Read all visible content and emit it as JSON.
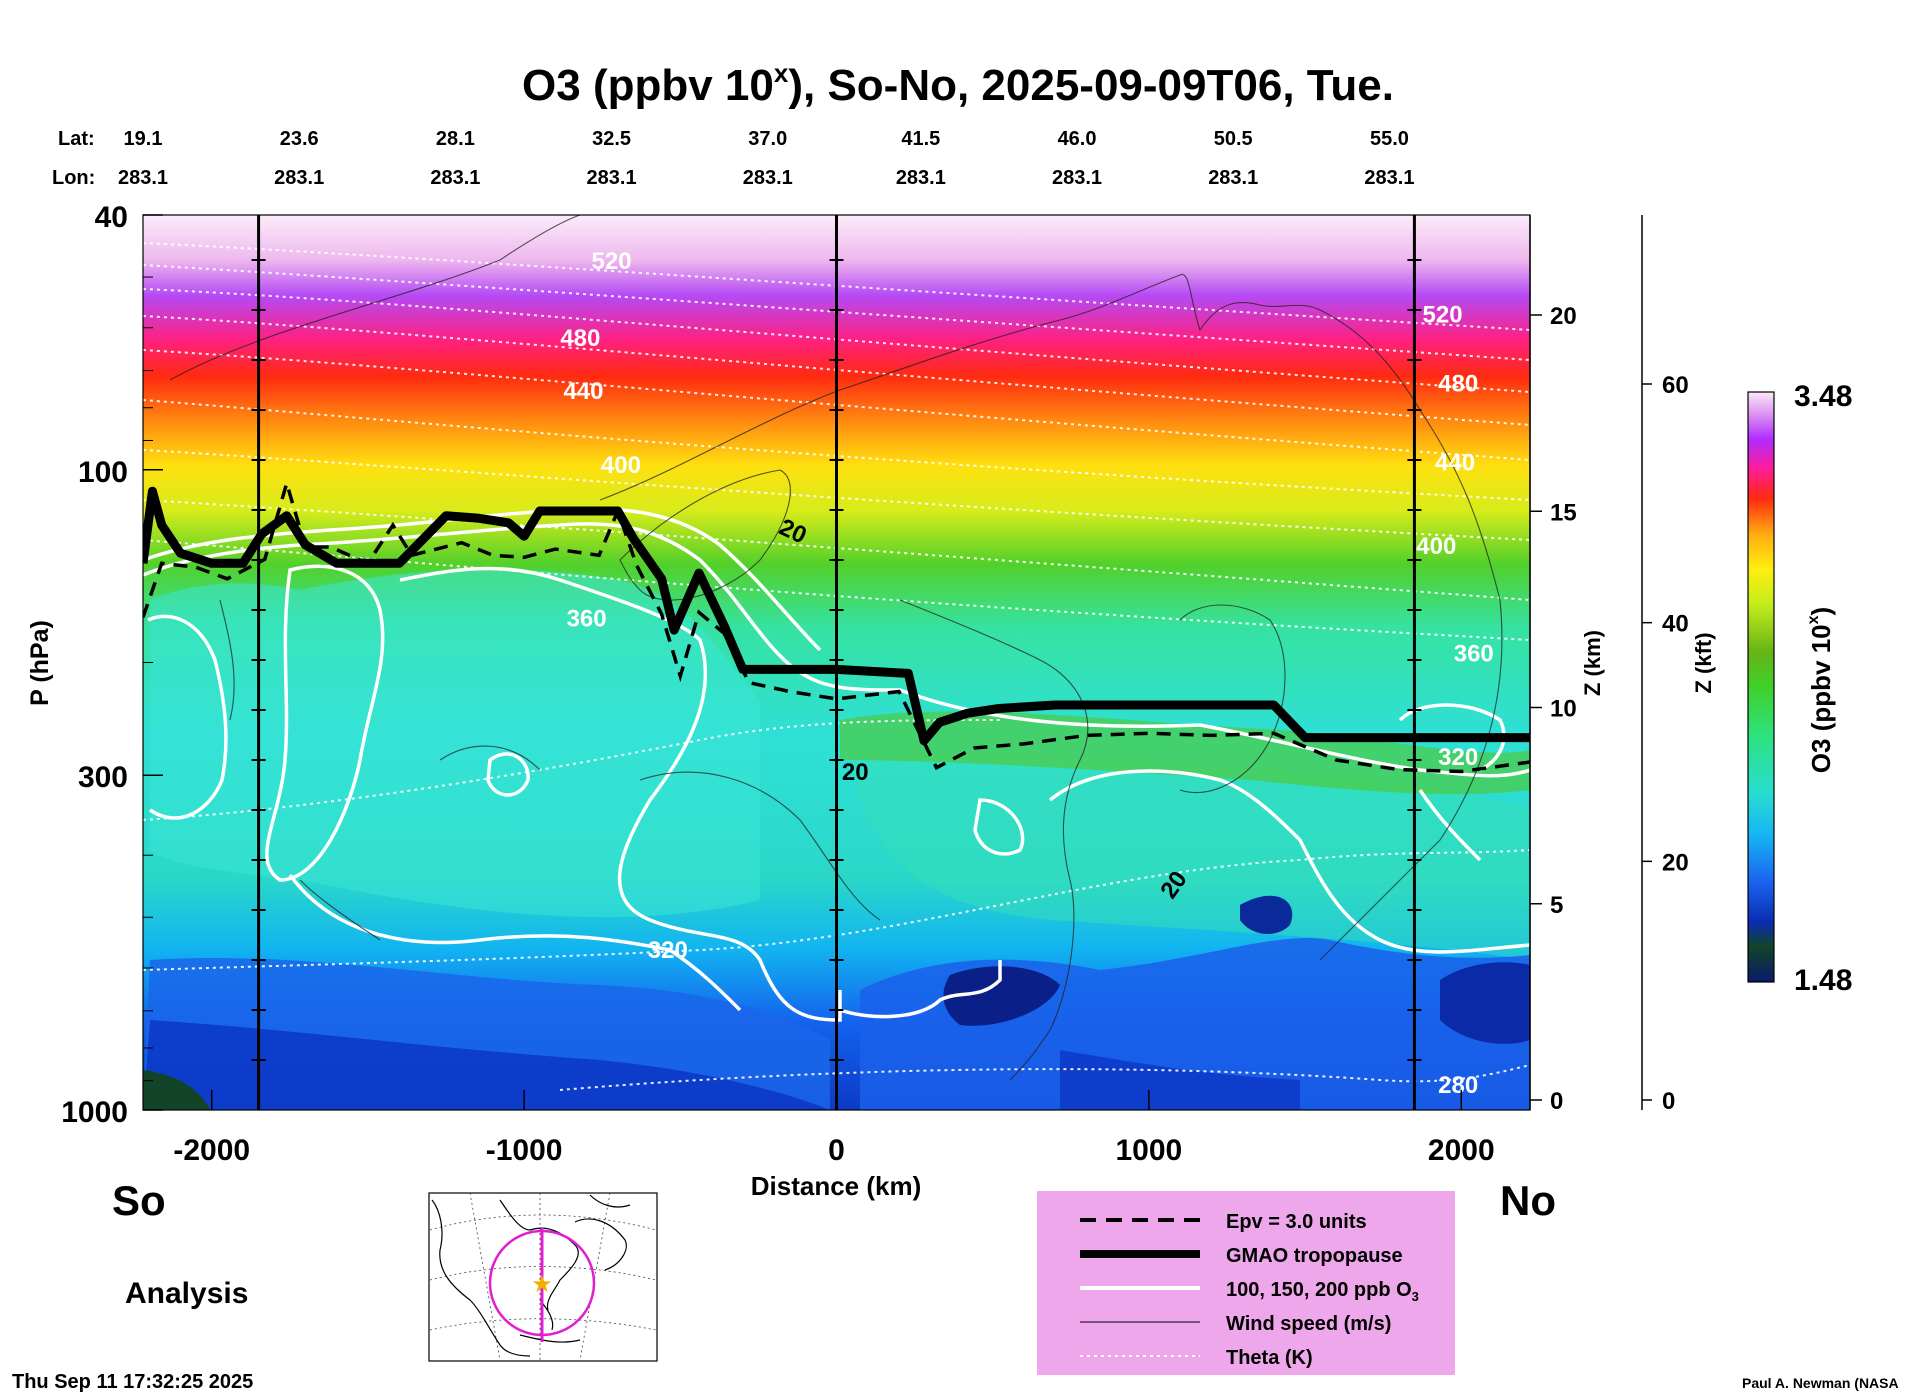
{
  "chart_data": {
    "type": "heatmap",
    "title": "O3 (ppbv 10",
    "title_sup": "x",
    "title_rest": "), So-No, 2025-09-09T06, Tue.",
    "lat_label": "Lat:",
    "lon_label": "Lon:",
    "lats": [
      "19.1",
      "23.6",
      "28.1",
      "32.5",
      "37.0",
      "41.5",
      "46.0",
      "50.5",
      "55.0"
    ],
    "lons": [
      "283.1",
      "283.1",
      "283.1",
      "283.1",
      "283.1",
      "283.1",
      "283.1",
      "283.1",
      "283.1"
    ],
    "station_distances_km": [
      -2220,
      -1720,
      -1220,
      -720,
      -220,
      270,
      770,
      1270,
      1770
    ],
    "xlabel": "Distance (km)",
    "xlim": [
      -2220,
      2220
    ],
    "x_ticks": [
      -2000,
      -1000,
      0,
      1000,
      2000
    ],
    "x_tick_labels": [
      "-2000",
      "-1000",
      "0",
      "1000",
      "2000"
    ],
    "vertical_lines_km": [
      -1850,
      0,
      1850
    ],
    "ylabel": "P (hPa)",
    "y_scale": "log",
    "ylim_hPa": [
      1000,
      40
    ],
    "y_ticks_hPa": [
      40,
      100,
      300,
      1000
    ],
    "y_tick_labels": [
      "40",
      "100",
      "300",
      "1000"
    ],
    "z_km_label": "Z (km)",
    "z_km_ticks": [
      0,
      5,
      10,
      15,
      20
    ],
    "z_kft_label": "Z (kft)",
    "z_kft_ticks": [
      0,
      20,
      40,
      60
    ],
    "colorbar": {
      "label": "O3 (ppbv 10",
      "label_sup": "x",
      "label_end": ")",
      "min_label": "1.48",
      "max_label": "3.48",
      "min": 1.48,
      "max": 3.48
    },
    "tropopause_hPa": [
      [
        -2220,
        140
      ],
      [
        -2190,
        108
      ],
      [
        -2160,
        122
      ],
      [
        -2100,
        135
      ],
      [
        -2000,
        140
      ],
      [
        -1900,
        140
      ],
      [
        -1840,
        126
      ],
      [
        -1760,
        118
      ],
      [
        -1700,
        131
      ],
      [
        -1600,
        140
      ],
      [
        -1400,
        140
      ],
      [
        -1250,
        118
      ],
      [
        -1150,
        119
      ],
      [
        -1050,
        121
      ],
      [
        -1000,
        127
      ],
      [
        -950,
        116
      ],
      [
        -700,
        116
      ],
      [
        -650,
        128
      ],
      [
        -560,
        148
      ],
      [
        -520,
        178
      ],
      [
        -440,
        145
      ],
      [
        -360,
        175
      ],
      [
        -300,
        205
      ],
      [
        -200,
        205
      ],
      [
        0,
        205
      ],
      [
        230,
        208
      ],
      [
        280,
        265
      ],
      [
        330,
        248
      ],
      [
        420,
        240
      ],
      [
        520,
        236
      ],
      [
        700,
        233
      ],
      [
        900,
        233
      ],
      [
        1100,
        233
      ],
      [
        1400,
        233
      ],
      [
        1500,
        262
      ],
      [
        1700,
        262
      ],
      [
        1900,
        262
      ],
      [
        2220,
        262
      ]
    ],
    "epv_hPa": [
      [
        -2220,
        170
      ],
      [
        -2160,
        140
      ],
      [
        -2050,
        142
      ],
      [
        -1950,
        148
      ],
      [
        -1830,
        138
      ],
      [
        -1760,
        105
      ],
      [
        -1700,
        132
      ],
      [
        -1620,
        132
      ],
      [
        -1500,
        140
      ],
      [
        -1420,
        122
      ],
      [
        -1360,
        136
      ],
      [
        -1200,
        130
      ],
      [
        -1100,
        136
      ],
      [
        -1000,
        137
      ],
      [
        -900,
        133
      ],
      [
        -760,
        136
      ],
      [
        -700,
        116
      ],
      [
        -640,
        141
      ],
      [
        -560,
        168
      ],
      [
        -500,
        210
      ],
      [
        -440,
        167
      ],
      [
        -360,
        180
      ],
      [
        -280,
        215
      ],
      [
        -150,
        222
      ],
      [
        0,
        228
      ],
      [
        200,
        222
      ],
      [
        320,
        292
      ],
      [
        440,
        272
      ],
      [
        600,
        268
      ],
      [
        800,
        260
      ],
      [
        1000,
        258
      ],
      [
        1200,
        260
      ],
      [
        1400,
        258
      ],
      [
        1600,
        284
      ],
      [
        1800,
        294
      ],
      [
        2000,
        296
      ],
      [
        2220,
        286
      ]
    ],
    "wind_contour_labels": [
      {
        "text": "20",
        "x_km": -150,
        "p_hPa": 128
      },
      {
        "text": "20",
        "x_km": 60,
        "p_hPa": 305
      },
      {
        "text": "20",
        "x_km": 1100,
        "p_hPa": 452
      }
    ],
    "theta_labels": [
      {
        "text": "520",
        "x_km": -720,
        "p_hPa": 47
      },
      {
        "text": "480",
        "x_km": -820,
        "p_hPa": 62
      },
      {
        "text": "440",
        "x_km": -810,
        "p_hPa": 75
      },
      {
        "text": "400",
        "x_km": -690,
        "p_hPa": 98
      },
      {
        "text": "360",
        "x_km": -800,
        "p_hPa": 170
      },
      {
        "text": "320",
        "x_km": -540,
        "p_hPa": 560
      },
      {
        "text": "520",
        "x_km": 1940,
        "p_hPa": 57
      },
      {
        "text": "480",
        "x_km": 1990,
        "p_hPa": 73
      },
      {
        "text": "440",
        "x_km": 1980,
        "p_hPa": 97
      },
      {
        "text": "400",
        "x_km": 1920,
        "p_hPa": 131
      },
      {
        "text": "360",
        "x_km": 2040,
        "p_hPa": 193
      },
      {
        "text": "320",
        "x_km": 1990,
        "p_hPa": 280
      },
      {
        "text": "280",
        "x_km": 1990,
        "p_hPa": 910
      }
    ],
    "legend": {
      "position": "bottom-right",
      "entries": [
        {
          "style": "dashed",
          "label": "Epv = 3.0 units"
        },
        {
          "style": "thick",
          "label": "GMAO tropopause"
        },
        {
          "style": "white",
          "label": "100, 150, 200 ppb O",
          "sub": "3"
        },
        {
          "style": "thin",
          "label": "Wind speed (m/s)"
        },
        {
          "style": "dotted",
          "label": "Theta (K)"
        }
      ],
      "bg_color": "#eea7ea"
    },
    "grid": false
  },
  "labels": {
    "south": "So",
    "north": "No",
    "analysis": "Analysis",
    "timestamp": "Thu Sep 11 17:32:25 2025",
    "credit": "Paul A. Newman (NASA"
  },
  "colors": {
    "tropopause": "#000000",
    "ozone_contour": "#ffffff",
    "legend_bg": "#eea7ea",
    "inset_circle": "#e020d0",
    "inset_star": "#f0b000"
  }
}
